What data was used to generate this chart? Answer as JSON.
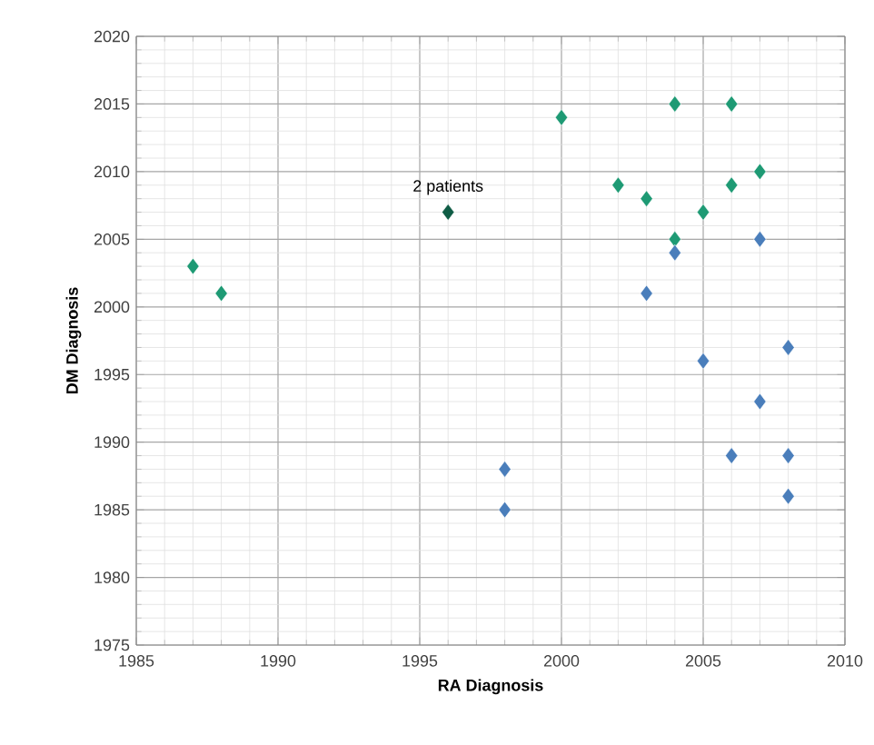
{
  "chart_data": {
    "type": "scatter",
    "xlabel": "RA Diagnosis",
    "ylabel": "DM Diagnosis",
    "xlim": [
      1985,
      2010
    ],
    "ylim": [
      1975,
      2020
    ],
    "xticks": [
      1985,
      1990,
      1995,
      2000,
      2005,
      2010
    ],
    "yticks": [
      1975,
      1980,
      1985,
      1990,
      1995,
      2000,
      2005,
      2010,
      2015,
      2020
    ],
    "grid": true,
    "marker": "diamond",
    "series": [
      {
        "color": "#1e9a74",
        "x": [
          1987,
          1988,
          2000,
          2002,
          2003,
          2004,
          2004,
          2005,
          2006,
          2006,
          2007
        ],
        "values": [
          2003,
          2001,
          2014,
          2009,
          2008,
          2015,
          2005,
          2007,
          2015,
          2009,
          2010
        ]
      },
      {
        "color": "#4a7ebb",
        "x": [
          2003,
          2004,
          2007,
          2008,
          2005,
          2007,
          2006,
          2008,
          2008,
          1998,
          1998
        ],
        "values": [
          2001,
          2004,
          2005,
          1997,
          1996,
          1993,
          1989,
          1989,
          1986,
          1988,
          1985
        ]
      },
      {
        "color": "#0f5c45",
        "x": [
          1996
        ],
        "values": [
          2007
        ]
      }
    ],
    "annotations": [
      {
        "text": "2 patients",
        "x": 1996,
        "y": 2007
      }
    ]
  }
}
